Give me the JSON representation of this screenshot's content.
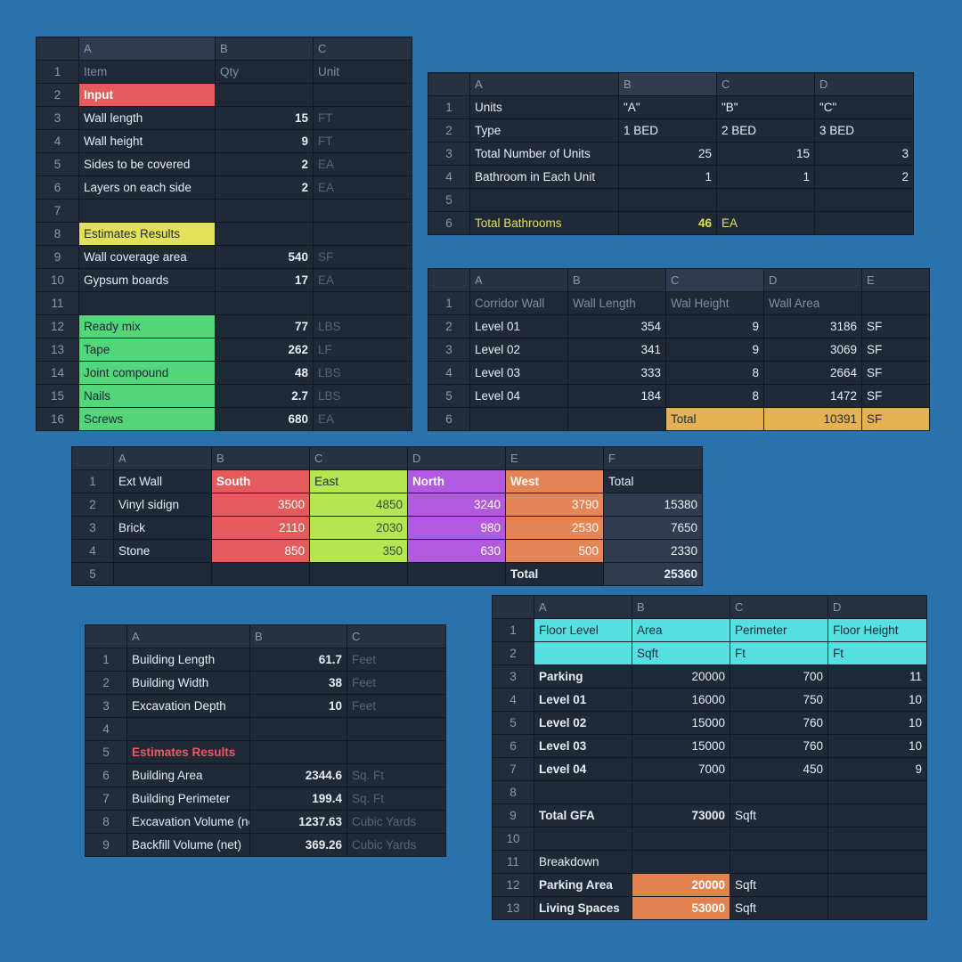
{
  "sheet1": {
    "cols": [
      "A",
      "B",
      "C"
    ],
    "rows": [
      {
        "n": "1",
        "a": "Item",
        "b": "Qty",
        "c": "Unit"
      },
      {
        "n": "2",
        "a": "Input",
        "b": "",
        "c": ""
      },
      {
        "n": "3",
        "a": "Wall length",
        "b": "15",
        "c": "FT"
      },
      {
        "n": "4",
        "a": "Wall height",
        "b": "9",
        "c": "FT"
      },
      {
        "n": "5",
        "a": "Sides to be covered",
        "b": "2",
        "c": "EA"
      },
      {
        "n": "6",
        "a": "Layers on each side",
        "b": "2",
        "c": "EA"
      },
      {
        "n": "7",
        "a": "",
        "b": "",
        "c": ""
      },
      {
        "n": "8",
        "a": "Estimates Results",
        "b": "",
        "c": ""
      },
      {
        "n": "9",
        "a": "Wall coverage area",
        "b": "540",
        "c": "SF"
      },
      {
        "n": "10",
        "a": "Gypsum boards",
        "b": "17",
        "c": "EA"
      },
      {
        "n": "11",
        "a": "",
        "b": "",
        "c": ""
      },
      {
        "n": "12",
        "a": "Ready mix",
        "b": "77",
        "c": "LBS"
      },
      {
        "n": "13",
        "a": "Tape",
        "b": "262",
        "c": "LF"
      },
      {
        "n": "14",
        "a": "Joint compound",
        "b": "48",
        "c": "LBS"
      },
      {
        "n": "15",
        "a": "Nails",
        "b": "2.7",
        "c": "LBS"
      },
      {
        "n": "16",
        "a": "Screws",
        "b": "680",
        "c": "EA"
      }
    ]
  },
  "sheet2": {
    "cols": [
      "A",
      "B",
      "C",
      "D"
    ],
    "rows": [
      {
        "n": "1",
        "a": "Units",
        "b": "\"A\"",
        "c": "\"B\"",
        "d": "\"C\""
      },
      {
        "n": "2",
        "a": "Type",
        "b": "1 BED",
        "c": "2 BED",
        "d": "3 BED"
      },
      {
        "n": "3",
        "a": "Total Number of Units",
        "b": "25",
        "c": "15",
        "d": "3"
      },
      {
        "n": "4",
        "a": "Bathroom in Each Unit",
        "b": "1",
        "c": "1",
        "d": "2"
      },
      {
        "n": "5",
        "a": "",
        "b": "",
        "c": "",
        "d": ""
      },
      {
        "n": "6",
        "a": "Total Bathrooms",
        "b": "46",
        "c": "EA",
        "d": ""
      }
    ]
  },
  "sheet3": {
    "cols": [
      "A",
      "B",
      "C",
      "D",
      "E"
    ],
    "rows": [
      {
        "n": "1",
        "a": "Corridor Wall",
        "b": "Wall Length",
        "c": "Wal Height",
        "d": "Wall Area",
        "e": ""
      },
      {
        "n": "2",
        "a": "Level 01",
        "b": "354",
        "c": "9",
        "d": "3186",
        "e": "SF"
      },
      {
        "n": "3",
        "a": "Level 02",
        "b": "341",
        "c": "9",
        "d": "3069",
        "e": "SF"
      },
      {
        "n": "4",
        "a": "Level 03",
        "b": "333",
        "c": "8",
        "d": "2664",
        "e": "SF"
      },
      {
        "n": "5",
        "a": "Level 04",
        "b": "184",
        "c": "8",
        "d": "1472",
        "e": "SF"
      },
      {
        "n": "6",
        "a": "",
        "b": "",
        "c": "Total",
        "d": "10391",
        "e": "SF"
      }
    ]
  },
  "sheet4": {
    "cols": [
      "A",
      "B",
      "C",
      "D",
      "E",
      "F"
    ],
    "rows": [
      {
        "n": "1",
        "a": "Ext Wall",
        "b": "South",
        "c": "East",
        "d": "North",
        "e": "West",
        "f": "Total"
      },
      {
        "n": "2",
        "a": "Vinyl sidign",
        "b": "3500",
        "c": "4850",
        "d": "3240",
        "e": "3790",
        "f": "15380"
      },
      {
        "n": "3",
        "a": "Brick",
        "b": "2110",
        "c": "2030",
        "d": "980",
        "e": "2530",
        "f": "7650"
      },
      {
        "n": "4",
        "a": "Stone",
        "b": "850",
        "c": "350",
        "d": "630",
        "e": "500",
        "f": "2330"
      },
      {
        "n": "5",
        "a": "",
        "b": "",
        "c": "",
        "d": "",
        "e": "Total",
        "f": "25360"
      }
    ]
  },
  "sheet5": {
    "cols": [
      "A",
      "B",
      "C"
    ],
    "rows": [
      {
        "n": "1",
        "a": "Building Length",
        "b": "61.7",
        "c": "Feet"
      },
      {
        "n": "2",
        "a": "Building Width",
        "b": "38",
        "c": "Feet"
      },
      {
        "n": "3",
        "a": "Excavation Depth",
        "b": "10",
        "c": "Feet"
      },
      {
        "n": "4",
        "a": "",
        "b": "",
        "c": ""
      },
      {
        "n": "5",
        "a": "Estimates Results",
        "b": "",
        "c": ""
      },
      {
        "n": "6",
        "a": "Building Area",
        "b": "2344.6",
        "c": "Sq. Ft"
      },
      {
        "n": "7",
        "a": "Building Perimeter",
        "b": "199.4",
        "c": "Sq. Ft"
      },
      {
        "n": "8",
        "a": "Excavation Volume (ne",
        "b": "1237.63",
        "c": "Cubic Yards"
      },
      {
        "n": "9",
        "a": "Backfill Volume (net)",
        "b": "369.26",
        "c": "Cubic Yards"
      }
    ]
  },
  "sheet6": {
    "cols": [
      "A",
      "B",
      "C",
      "D"
    ],
    "rows": [
      {
        "n": "1",
        "a": "Floor Level",
        "b": "Area",
        "c": "Perimeter",
        "d": "Floor Height"
      },
      {
        "n": "2",
        "a": "",
        "b": "Sqft",
        "c": "Ft",
        "d": "Ft"
      },
      {
        "n": "3",
        "a": "Parking",
        "b": "20000",
        "c": "700",
        "d": "11"
      },
      {
        "n": "4",
        "a": "Level 01",
        "b": "16000",
        "c": "750",
        "d": "10"
      },
      {
        "n": "5",
        "a": "Level 02",
        "b": "15000",
        "c": "760",
        "d": "10"
      },
      {
        "n": "6",
        "a": "Level 03",
        "b": "15000",
        "c": "760",
        "d": "10"
      },
      {
        "n": "7",
        "a": "Level 04",
        "b": "7000",
        "c": "450",
        "d": "9"
      },
      {
        "n": "8",
        "a": "",
        "b": "",
        "c": "",
        "d": ""
      },
      {
        "n": "9",
        "a": "Total GFA",
        "b": "73000",
        "c": "Sqft",
        "d": ""
      },
      {
        "n": "10",
        "a": "",
        "b": "",
        "c": "",
        "d": ""
      },
      {
        "n": "11",
        "a": "Breakdown",
        "b": "",
        "c": "",
        "d": ""
      },
      {
        "n": "12",
        "a": "Parking Area",
        "b": "20000",
        "c": "Sqft",
        "d": ""
      },
      {
        "n": "13",
        "a": "Living Spaces",
        "b": "53000",
        "c": "Sqft",
        "d": ""
      }
    ]
  }
}
